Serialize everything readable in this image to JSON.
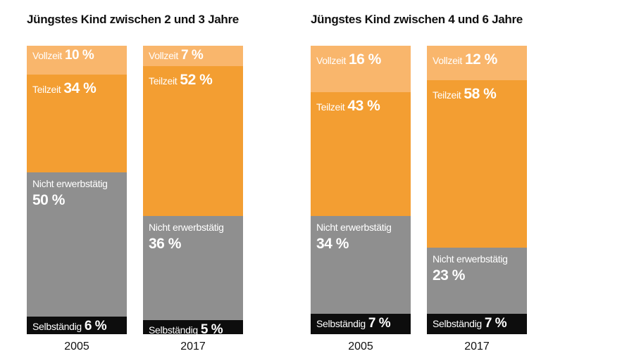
{
  "colors": {
    "vollzeit": "#f9b66c",
    "teilzeit": "#f39e32",
    "nicht_erwerbstaetig": "#8f8f8f",
    "selbststaendig": "#0d0d0d"
  },
  "chart_data": [
    {
      "type": "bar",
      "title": "Jüngstes Kind zwischen 2 und 3 Jahre",
      "categories": [
        "2005",
        "2017"
      ],
      "stacked": true,
      "ylim": [
        0,
        100
      ],
      "series": [
        {
          "name": "Vollzeit",
          "values": [
            10,
            7
          ],
          "labels": [
            "10 %",
            "7 %"
          ]
        },
        {
          "name": "Teilzeit",
          "values": [
            34,
            52
          ],
          "labels": [
            "34 %",
            "52 %"
          ]
        },
        {
          "name": "Nicht erwerbstätig",
          "values": [
            50,
            36
          ],
          "labels": [
            "50 %",
            "36 %"
          ]
        },
        {
          "name": "Selbständig",
          "values": [
            6,
            5
          ],
          "labels": [
            "6 %",
            "5 %"
          ]
        }
      ]
    },
    {
      "type": "bar",
      "title": "Jüngstes Kind zwischen 4 und 6 Jahre",
      "categories": [
        "2005",
        "2017"
      ],
      "stacked": true,
      "ylim": [
        0,
        100
      ],
      "series": [
        {
          "name": "Vollzeit",
          "values": [
            16,
            12
          ],
          "labels": [
            "16 %",
            "12 %"
          ]
        },
        {
          "name": "Teilzeit",
          "values": [
            43,
            58
          ],
          "labels": [
            "43 %",
            "58 %"
          ]
        },
        {
          "name": "Nicht erwerbstätig",
          "values": [
            34,
            23
          ],
          "labels": [
            "34 %",
            "23 %"
          ]
        },
        {
          "name": "Selbständig",
          "values": [
            7,
            7
          ],
          "labels": [
            "7 %",
            "7 %"
          ]
        }
      ]
    }
  ]
}
